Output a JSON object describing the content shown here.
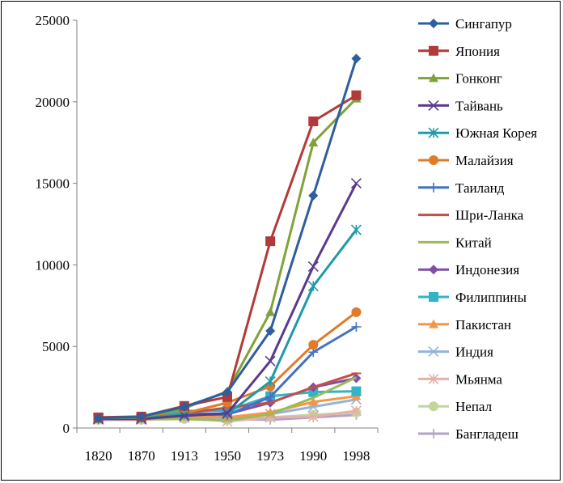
{
  "chart_data": {
    "type": "line",
    "title": "",
    "xlabel": "",
    "ylabel": "",
    "categories": [
      "1820",
      "1870",
      "1913",
      "1950",
      "1973",
      "1990",
      "1998"
    ],
    "ylim": [
      0,
      25000
    ],
    "yticks": [
      0,
      5000,
      10000,
      15000,
      20000,
      25000
    ],
    "grid": false,
    "legend_position": "right",
    "series": [
      {
        "name": "Сингапур",
        "color": "#2E5E9E",
        "marker": "diamond",
        "values": [
          600,
          700,
          1300,
          2200,
          5950,
          14250,
          22650
        ]
      },
      {
        "name": "Япония",
        "color": "#B23A38",
        "marker": "square",
        "values": [
          650,
          700,
          1350,
          1900,
          11450,
          18800,
          20400
        ]
      },
      {
        "name": "Гонконг",
        "color": "#7FA33A",
        "marker": "triangle",
        "values": [
          600,
          650,
          1200,
          2250,
          7100,
          17500,
          20200
        ]
      },
      {
        "name": "Тайвань",
        "color": "#5B3A8C",
        "marker": "x",
        "values": [
          550,
          550,
          750,
          900,
          4100,
          9900,
          15000
        ]
      },
      {
        "name": "Южная Корея",
        "color": "#1F9AA8",
        "marker": "star",
        "values": [
          600,
          600,
          850,
          850,
          2850,
          8700,
          12150
        ]
      },
      {
        "name": "Малайзия",
        "color": "#E07B2A",
        "marker": "circle",
        "values": [
          600,
          650,
          900,
          1550,
          2550,
          5100,
          7100
        ]
      },
      {
        "name": "Таиланд",
        "color": "#4472C4",
        "marker": "plus",
        "values": [
          550,
          600,
          850,
          800,
          1900,
          4650,
          6200
        ]
      },
      {
        "name": "Шри-Ланка",
        "color": "#C0504D",
        "marker": "dash",
        "values": [
          550,
          600,
          900,
          1250,
          1550,
          2500,
          3350
        ]
      },
      {
        "name": "Китай",
        "color": "#9BBB59",
        "marker": "line",
        "values": [
          600,
          550,
          550,
          450,
          850,
          1850,
          3100
        ]
      },
      {
        "name": "Индонезия",
        "color": "#7E4FA5",
        "marker": "diamond",
        "values": [
          600,
          650,
          900,
          850,
          1550,
          2500,
          3050
        ]
      },
      {
        "name": "Филиппины",
        "color": "#31B3C8",
        "marker": "square",
        "values": [
          600,
          650,
          1050,
          1050,
          1950,
          2200,
          2250
        ]
      },
      {
        "name": "Пакистан",
        "color": "#F79646",
        "marker": "triangle",
        "values": [
          550,
          600,
          700,
          650,
          950,
          1600,
          1950
        ]
      },
      {
        "name": "Индия",
        "color": "#95B3D7",
        "marker": "x",
        "values": [
          550,
          550,
          650,
          600,
          850,
          1300,
          1750
        ]
      },
      {
        "name": "Мьянма",
        "color": "#E6B0AA",
        "marker": "star",
        "values": [
          500,
          500,
          650,
          400,
          650,
          700,
          1050
        ]
      },
      {
        "name": "Непал",
        "color": "#C3D69B",
        "marker": "circle",
        "values": [
          500,
          500,
          550,
          500,
          650,
          800,
          950
        ]
      },
      {
        "name": "Бангладеш",
        "color": "#B3A2C7",
        "marker": "plus",
        "values": [
          500,
          500,
          600,
          550,
          500,
          650,
          800
        ]
      }
    ]
  }
}
